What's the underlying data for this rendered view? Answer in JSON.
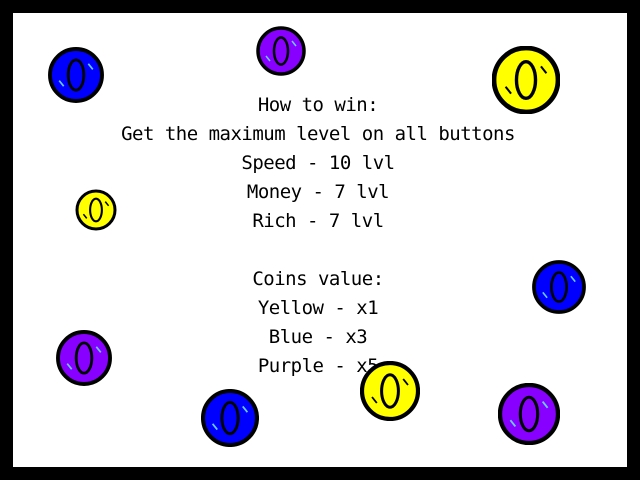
{
  "how_to_win": {
    "heading": "How to win:",
    "goal": "Get the maximum level on all buttons",
    "requirements": [
      "Speed - 10 lvl",
      "Money - 7 lvl",
      "Rich - 7 lvl"
    ]
  },
  "coins_value": {
    "heading": "Coins value:",
    "values": [
      "Yellow - x1",
      "Blue - x3",
      "Purple - x5"
    ]
  },
  "coin_colors": {
    "yellow": "#ffff00",
    "blue": "#0000ff",
    "purple": "#8800ff",
    "outline": "#000000"
  },
  "coin_glyph": "0",
  "icons": [
    "yellow-coin-icon",
    "blue-coin-icon",
    "purple-coin-icon"
  ]
}
